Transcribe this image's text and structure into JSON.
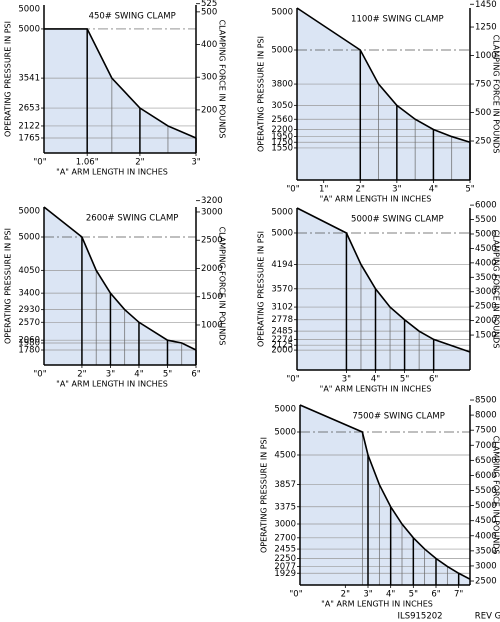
{
  "chart_data": [
    {
      "type": "line",
      "title": "450# SWING CLAMP",
      "x_label": "\"A\" ARM LENGTH IN INCHES",
      "y_label": "OPERATING PRESSURE IN PSI",
      "y2_label": "CLAMPING FORCE IN POUNDS",
      "x_origin_label": "\"0\"",
      "y_top_label": 5000,
      "color": "#000000",
      "fill": "#dbe5f4",
      "grid": true,
      "xlim": [
        0.29,
        3
      ],
      "xticks": [
        {
          "value": 1.06,
          "label": "1.06\""
        },
        {
          "value": 2,
          "label": "2\""
        },
        {
          "value": 3,
          "label": "3\""
        }
      ],
      "ylim": [
        1320,
        5710
      ],
      "yticks": [
        5000,
        3541,
        2653,
        2122,
        1765
      ],
      "y2lim": [
        68,
        521
      ],
      "y2ticks": [
        525,
        500,
        400,
        300,
        200
      ],
      "x": [
        0.29,
        1.06,
        1.5,
        2,
        2.5,
        3
      ],
      "values": [
        5000,
        5000,
        3541,
        2653,
        2122,
        1765
      ]
    },
    {
      "type": "line",
      "title": "1100# SWING CLAMP",
      "x_label": "\"A\" ARM LENGTH IN INCHES",
      "y_label": "OPERATING PRESSURE IN PSI",
      "y2_label": "CLAMPING FORCE IN POUNDS",
      "x_origin_label": "\"0\"",
      "y_top_label": 5000,
      "color": "#000000",
      "fill": "#dbe5f4",
      "grid": true,
      "xlim": [
        0.27,
        5
      ],
      "xticks": [
        {
          "value": 1,
          "label": "1\""
        },
        {
          "value": 2,
          "label": "2\""
        },
        {
          "value": 3,
          "label": "3\""
        },
        {
          "value": 4,
          "label": "4\""
        },
        {
          "value": 5,
          "label": "5\""
        }
      ],
      "ylim": [
        420,
        6480
      ],
      "yticks": [
        5000,
        3800,
        3050,
        2560,
        2200,
        1950,
        1750,
        1550
      ],
      "y2lim": [
        -92,
        1417
      ],
      "y2ticks": [
        1450,
        1250,
        1000,
        750,
        500,
        250
      ],
      "x": [
        0.27,
        2,
        2.5,
        3,
        3.5,
        4,
        4.5,
        5
      ],
      "values": [
        6480,
        5000,
        3800,
        3050,
        2560,
        2200,
        1950,
        1750
      ]
    },
    {
      "type": "line",
      "title": "2600# SWING CLAMP",
      "x_label": "\"A\" ARM LENGTH IN INCHES",
      "y_label": "OPERATING PRESSURE IN PSI",
      "y2_label": "CLAMPING FORCE IN POUNDS",
      "x_origin_label": "\"0\"",
      "y_top_label": 5000,
      "color": "#000000",
      "fill": "#dbe5f4",
      "grid": true,
      "xlim": [
        0.67,
        6
      ],
      "xticks": [
        {
          "value": 2,
          "label": "2\""
        },
        {
          "value": 3,
          "label": "3\""
        },
        {
          "value": 4,
          "label": "4\""
        },
        {
          "value": 5,
          "label": "5\""
        },
        {
          "value": 6,
          "label": "6\""
        }
      ],
      "ylim": [
        1353,
        5855
      ],
      "yticks": [
        5000,
        4050,
        3400,
        2930,
        2570,
        2060,
        1980,
        1780
      ],
      "y2lim": [
        292,
        3088
      ],
      "y2ticks": [
        3200,
        3000,
        2500,
        2000,
        1500,
        1000
      ],
      "x": [
        0.67,
        2,
        2.5,
        3,
        3.5,
        4,
        5,
        5.5,
        6
      ],
      "values": [
        5855,
        5000,
        4050,
        3400,
        2930,
        2570,
        2060,
        1980,
        1780
      ]
    },
    {
      "type": "line",
      "title": "5000# SWING CLAMP",
      "x_label": "\"A\" ARM LENGTH IN INCHES",
      "y_label": "OPERATING PRESSURE IN PSI",
      "y2_label": "CLAMPING FORCE IN POUNDS",
      "x_origin_label": "\"0\"",
      "y_top_label": 5000,
      "color": "#000000",
      "fill": "#dbe5f4",
      "grid": true,
      "xlim": [
        1.3,
        7.25
      ],
      "xticks": [
        {
          "value": 3,
          "label": "3\""
        },
        {
          "value": 4,
          "label": "4\""
        },
        {
          "value": 5,
          "label": "5\""
        },
        {
          "value": 6,
          "label": "6\""
        }
      ],
      "ylim": [
        1490,
        5640
      ],
      "yticks": [
        5000,
        4194,
        3570,
        3102,
        2778,
        2485,
        2274,
        2125,
        2000
      ],
      "y2lim": [
        290,
        5900
      ],
      "y2ticks": [
        6000,
        5500,
        5000,
        4500,
        4000,
        3500,
        3000,
        2500,
        2000,
        1500
      ],
      "x": [
        1.3,
        3,
        3.5,
        4,
        4.5,
        5,
        5.5,
        6,
        7.25
      ],
      "values": [
        5640,
        5000,
        4194,
        3570,
        3102,
        2778,
        2485,
        2274,
        1950
      ]
    },
    {
      "type": "line",
      "title": "7500# SWING CLAMP",
      "x_label": "\"A\" ARM LENGTH IN INCHES",
      "y_label": "OPERATING PRESSURE IN PSI",
      "y2_label": "CLAMPING FORCE IN POUNDS",
      "x_origin_label": "\"0\"",
      "y_top_label": 5000,
      "color": "#000000",
      "fill": "#dbe5f4",
      "grid": true,
      "xlim": [
        0,
        7.5
      ],
      "xticks": [
        {
          "value": 2,
          "label": "2\""
        },
        {
          "value": 3,
          "label": "3\""
        },
        {
          "value": 4,
          "label": "4\""
        },
        {
          "value": 5,
          "label": "5\""
        },
        {
          "value": 6,
          "label": "6\""
        },
        {
          "value": 7,
          "label": "7\""
        }
      ],
      "ylim": [
        1674,
        5587
      ],
      "yticks": [
        5000,
        4500,
        3857,
        3375,
        3000,
        2700,
        2455,
        2250,
        2077,
        1929
      ],
      "y2lim": [
        2368,
        8335
      ],
      "y2ticks": [
        8500,
        8000,
        7500,
        7000,
        6500,
        6000,
        5500,
        5000,
        4500,
        4000,
        3500,
        3000,
        2500
      ],
      "x": [
        0,
        2.75,
        3,
        3.5,
        4,
        4.5,
        5,
        5.5,
        6,
        6.5,
        7,
        7.5
      ],
      "values": [
        5587,
        5000,
        4500,
        3857,
        3375,
        3000,
        2700,
        2455,
        2250,
        2077,
        1929,
        1800
      ]
    }
  ],
  "footer": {
    "drawing_number": "ILS915202",
    "revision": "REV G"
  }
}
